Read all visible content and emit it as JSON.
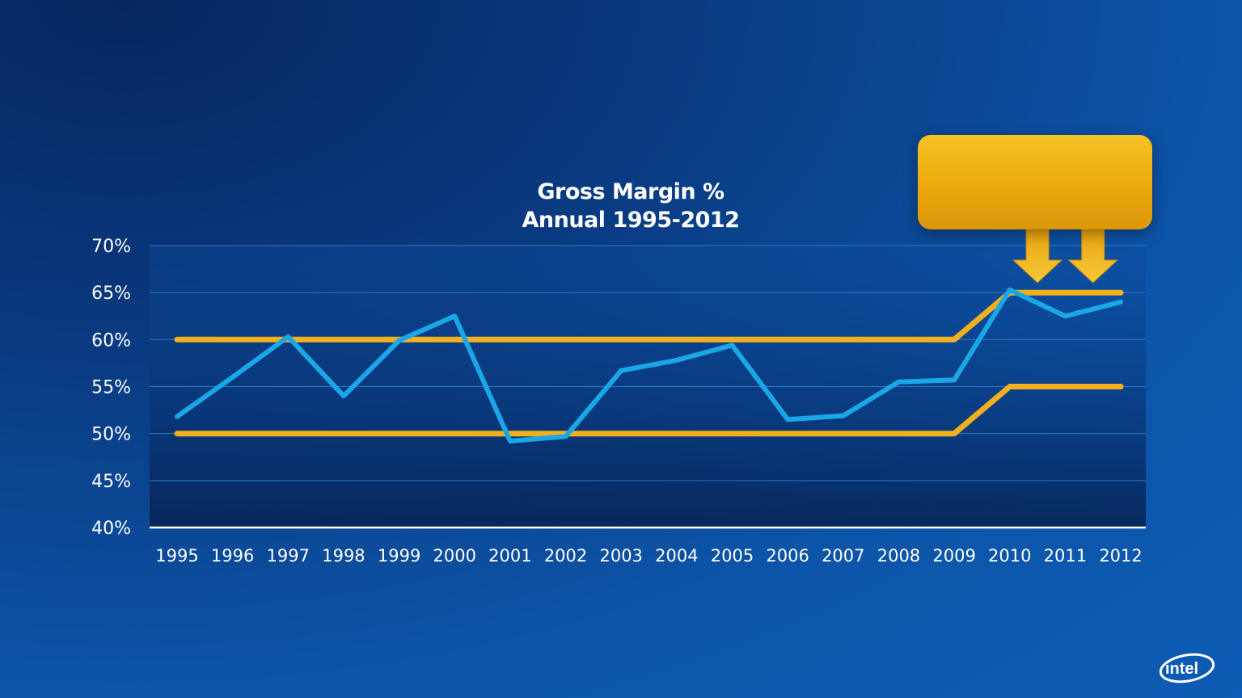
{
  "chart_data": {
    "type": "line",
    "title": "Gross Margin %",
    "subtitle": "Annual 1995-2012",
    "categories": [
      "1995",
      "1996",
      "1997",
      "1998",
      "1999",
      "2000",
      "2001",
      "2002",
      "2003",
      "2004",
      "2005",
      "2006",
      "2007",
      "2008",
      "2009",
      "2010",
      "2011",
      "2012"
    ],
    "series": [
      {
        "values": [
          51.8,
          56.0,
          60.3,
          54.0,
          59.9,
          62.5,
          49.2,
          49.7,
          56.7,
          57.8,
          59.4,
          51.5,
          51.9,
          55.5,
          55.7,
          65.3,
          62.5,
          64.0
        ]
      },
      {
        "values": [
          60,
          60,
          60,
          60,
          60,
          60,
          60,
          60,
          60,
          60,
          60,
          60,
          60,
          60,
          60,
          65,
          65,
          65
        ]
      },
      {
        "values": [
          50,
          50,
          50,
          50,
          50,
          50,
          50,
          50,
          50,
          50,
          50,
          50,
          50,
          50,
          50,
          55,
          55,
          55
        ]
      }
    ],
    "ylim": [
      40,
      70
    ],
    "yticks": [
      40,
      45,
      50,
      55,
      60,
      65,
      70
    ],
    "ytick_labels": [
      "40%",
      "45%",
      "50%",
      "55%",
      "60%",
      "65%",
      "70%"
    ],
    "grid": true,
    "annotation_arrows": [
      "2010.5",
      "2011.5"
    ]
  },
  "colors": {
    "actual_line": "#1aa7e8",
    "range_lines": "#f2b01e",
    "axis": "#ffffff",
    "grid": "#2f78c8",
    "callout": "#efb21a"
  },
  "logo": {
    "text": "intel"
  }
}
